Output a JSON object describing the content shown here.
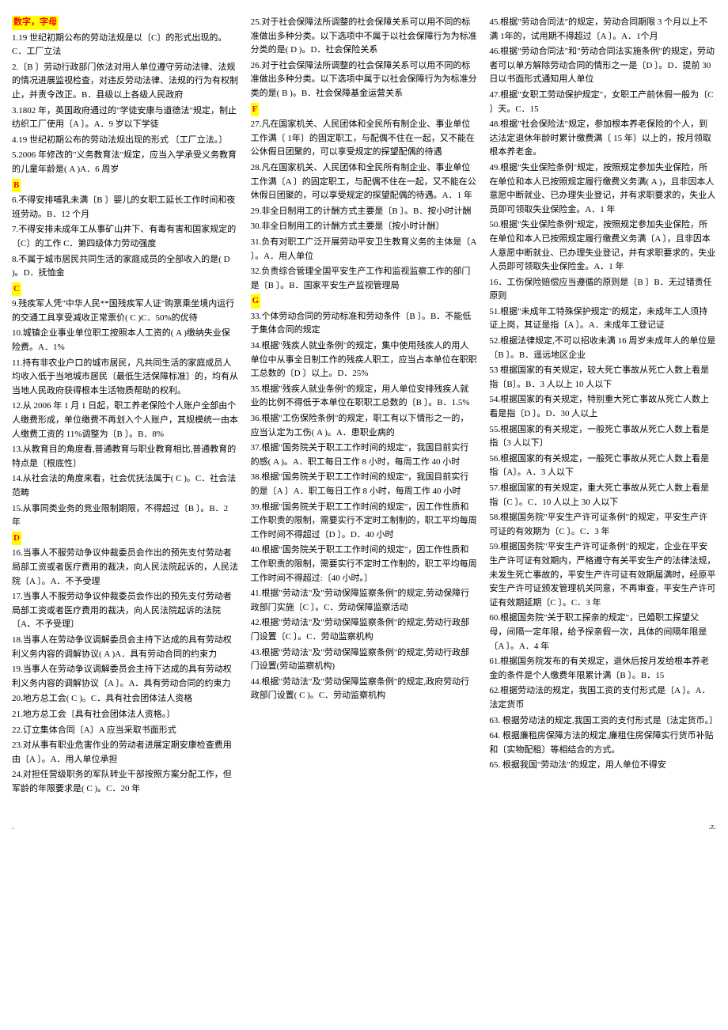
{
  "sections": {
    "header": "数字，字母",
    "B": "B",
    "C": "C",
    "D": "D",
    "F": "F",
    "G": "G"
  },
  "col1": [
    {
      "type": "header",
      "key": "header"
    },
    {
      "type": "item",
      "text": "1.19 世纪初期公布的劳动法规是以〔C〕的形式出现的。C．工厂立法"
    },
    {
      "type": "item",
      "text": "2.〔B  〕劳动行政部门依法对用人单位遵守劳动法律、法规的情况进展监视检查，对违反劳动法律、法规的行为有权制止，并责令改正。B．县级以上各级人民政府"
    },
    {
      "type": "item",
      "text": "3.1802 年，英国政府通过的\"学徒安康与道德法\"规定，制止纺织工厂使用〔A  〕。A．9 岁以下学徒"
    },
    {
      "type": "item",
      "text": "4.19 世纪初期公布的劳动法规出现的形式  〔工厂立法。〕"
    },
    {
      "type": "item",
      "text": "5.2006 年修改的\"义务教育法\"规定，应当入学承受义务教育的儿童年龄是( A  )A．6 周岁"
    },
    {
      "type": "header",
      "key": "B"
    },
    {
      "type": "item",
      "text": "6.不得安排哺乳未满〔B  〕婴儿的女职工延长工作时间和夜班劳动。B．12 个月"
    },
    {
      "type": "item",
      "text": "7.不得安排未成年工从事矿山井下、有毒有害和国家规定的〔C〕的工作 C．第四级体力劳动强度"
    },
    {
      "type": "item",
      "text": "8.不属于城市居民共同生活的家庭成员的全部收入的是(  D  )。D．抚恤金"
    },
    {
      "type": "header",
      "key": "C"
    },
    {
      "type": "item",
      "text": "9.残疾军人凭\"中华人民**国残疾军人证\"购票乘坐境内运行的交通工具享受减收正常票价(  C  )C．50%的优待"
    },
    {
      "type": "item",
      "text": "10.城镇企业事业单位职工按照本人工资的( A   )缴纳失业保险费。A．1%"
    },
    {
      "type": "item",
      "text": "11.持有非农业户口的城市居民，凡共同生活的家庭成员人均收入低于当地城市居民〔最低生活保障标准〕的，均有从当地人民政府获得根本生活物质帮助的权利。"
    },
    {
      "type": "item",
      "text": "12.从 2006 年 1 月 1 日起，职工养老保险个人账户全部由个人缴费形成，单位缴费不再划入个人账户，其规模统一由本人缴费工资的 11%调整为〔B  〕。B．8%"
    },
    {
      "type": "item",
      "text": "13.从教育目的角度看,普通教育与职业教育相比,普通教育的特点是〔根底性〕"
    },
    {
      "type": "item",
      "text": "14.从社会法的角度来看，社会优抚法属于(  C  )。C．社会法范畴"
    },
    {
      "type": "item",
      "text": "15.从事同类业务的竞业限制期限，不得超过〔B  〕。B．2 年"
    },
    {
      "type": "header",
      "key": "D"
    },
    {
      "type": "item",
      "text": "16.当事人不服劳动争议仲裁委员会作出的预先支付劳动者局部工资或者医疗费用的裁决，向人民法院起诉的，人民法院〔A  〕。A．不予受理"
    },
    {
      "type": "item",
      "text": "17.当事人不服劳动争议仲裁委员会作出的预先支付劳动者局部工资或者医疗费用的裁决，向人民法院起诉的法院〔A、不予受理〕"
    },
    {
      "type": "item",
      "text": "18.当事人在劳动争议调解委员会主持下达成的具有劳动权利义务内容的调解协议( A  )A．具有劳动合同的约束力"
    },
    {
      "type": "item",
      "text": "19.当事人在劳动争议调解委员会主持下达成的具有劳动权利义务内容的调解协议〔A  〕。A．具有劳动合同的约束力"
    },
    {
      "type": "item",
      "text": "20.地方总工会( C )。C．具有社会团体法人资格"
    },
    {
      "type": "item",
      "text": "21.地方总工会〔具有社会团体法人资格。〕"
    },
    {
      "type": "item",
      "text": "22.订立集体合同〔A〕A 应当采取书面形式"
    },
    {
      "type": "item",
      "text": "23.对从事有职业危害作业的劳动者进展定期安康检查费用由〔A  〕。A．用人单位承担"
    },
    {
      "type": "item",
      "text": "24.对担任营级职务的军队转业干部按照方案分配工作，但军龄的年限要求是( C    )。C．20 年"
    }
  ],
  "col2": [
    {
      "type": "item",
      "text": "25.对于社会保障法所调整的社会保障关系可以用不同的标准做出多种分类。以下选项中不属于以社会保障行为为标准分类的是(  D  )。D．社会保险关系"
    },
    {
      "type": "item",
      "text": "26.对于社会保障法所调整的社会保障关系可以用不同的标准做出多种分类。以下选项中属于以社会保障行为为标准分类的是(  B  )。B．社会保障基金运营关系"
    },
    {
      "type": "header",
      "key": "F"
    },
    {
      "type": "item",
      "text": "27.凡在国家机关、人民团体和全民所有制企业、事业单位工作满〔 1年〕的固定职工，与配偶不住在一起，又不能在公休假日团聚的，可以享受规定的探望配偶的待遇"
    },
    {
      "type": "item",
      "text": "28.凡在国家机关、人民团体和全民所有制企业、事业单位工作满〔A  〕的固定职工，与配偶不住在一起，又不能在公休假日团聚的，可以享受规定的探望配偶的待遇。A．1 年"
    },
    {
      "type": "item",
      "text": "29.非全日制用工的计酬方式主要是〔B  〕。B．按小时计酬"
    },
    {
      "type": "item",
      "text": "30.非全日制用工的计酬方式主要是〔按小时计酬〕"
    },
    {
      "type": "item",
      "text": "31.负有对职工广泛开展劳动平安卫生教育义务的主体是〔A  〕。A．用人单位"
    },
    {
      "type": "item",
      "text": "32.负责综合管理全国平安生产工作和监视监察工作的部门是〔B  〕。B．国家平安生产监视管理局"
    },
    {
      "type": "header",
      "key": "G"
    },
    {
      "type": "item",
      "text": "33.个体劳动合同的劳动标准和劳动条件〔B  〕。B．不能低于集体合同的规定"
    },
    {
      "type": "item",
      "text": "34.根据\"残疾人就业条例\"的规定，集中使用残疾人的用人单位中从事全日制工作的残疾人职工，应当占本单位在职职工总数的〔D  〕以上。D．25%"
    },
    {
      "type": "item",
      "text": "35.根据\"残疾人就业条例\"的规定，用人单位安排残疾人就业的比例不得低于本单位在职职工总数的〔B  〕。B．1.5%"
    },
    {
      "type": "item",
      "text": "36.根据\"工伤保险条例\"的规定，职工有以下情形之一的，应当认定为工伤(  A  )。A．患职业病的"
    },
    {
      "type": "item",
      "text": "37.根据\"国务院关于职工工作时间的规定\"，我国目前实行的感(  A  )。A．职工每日工作 8 小时，每周工作 40 小时"
    },
    {
      "type": "item",
      "text": "38.根据\"国务院关于职工工作时间的规定\"，我国目前实行的是〔A  〕A．职工每日工作 8 小时，每周工作 40 小时"
    },
    {
      "type": "item",
      "text": "39.根据\"国务院关于职工工作时间的规定\"，因工作性质和工作职责的限制，需要实行不定时工制制的，职工平均每周工作时间不得超过〔D  〕。D．40 小时"
    },
    {
      "type": "item",
      "text": "40.根据\"国务院关于职工工作时间的规定\"，因工作性质和工作职责的限制，需要实行不定时工作制的，职工平均每周工作时间不得超过:〔40 小时。〕"
    },
    {
      "type": "item",
      "text": "41.根据\"劳动法\"及\"劳动保障监察条例\"的规定,劳动保障行政部门实施〔C  〕。C．劳动保障监察活动"
    },
    {
      "type": "item",
      "text": "42.根据\"劳动法\"及\"劳动保障监察条例\"的规定,劳动行政部门设置〔C  〕。C．劳动监察机构"
    },
    {
      "type": "item",
      "text": "43.根据\"劳动法\"及\"劳动保障监察条例\"的规定,劳动行政部门设置(劳动监察机构)"
    },
    {
      "type": "item",
      "text": "44.根据\"劳动法\"及\"劳动保障监察条例\"的规定,政府劳动行政部门设置(  C  )。C．劳动监察机构"
    }
  ],
  "col3": [
    {
      "type": "item",
      "text": "45.根据\"劳动合同法\"的规定，劳动合同期限 3 个月以上不满 1年的，试用期不得超过〔A  〕。A．1个月"
    },
    {
      "type": "item",
      "text": "46.根据\"劳动合同法\"和\"劳动合同法实施条例\"的规定，劳动者可以单方解除劳动合同的情形之一是〔D  〕。D．提前 30 日以书面形式通知用人单位"
    },
    {
      "type": "item",
      "text": "47.根据\"女职工劳动保护规定\"，女职工产前休假一般为〔C  〕天。C．15"
    },
    {
      "type": "item",
      "text": "48.根据\"社会保险法\"规定，参加根本养老保险的个人，到达法定退休年龄时累计缴费满〔 15 年〕以上的，按月领取根本养老金。"
    },
    {
      "type": "item",
      "text": "49.根据\"失业保险条例\"规定，按照规定参加失业保险，所在单位和本人已按照规定履行缴费义务满(  A  )，且非因本人意愿中断就业、已办理失业登记，并有求职要求的，失业人员即可领取失业保险金。A．1 年"
    },
    {
      "type": "item",
      "text": "50.根据\"失业保险条例\"规定，按照规定参加失业保险，所在单位和本人已按照规定履行缴费义务满〔A  〕，且非因本人意愿中断就业、已办理失业登记，并有求职要求的，失业人员即可领取失业保险金。A．1 年"
    },
    {
      "type": "item",
      "text": "16．工伤保险赔偿应当遵循的原则是〔B  〕B．无过错责任原则"
    },
    {
      "type": "item",
      "text": "51.根据\"未成年工特殊保护规定\"的规定，未成年工人须持证上岗，其证是指〔A  〕。A．未成年工登记证"
    },
    {
      "type": "item",
      "text": "52.根据法律规定,不可以招收未满 16 周岁未成年人的单位是〔B  〕。B．遥远地区企业"
    },
    {
      "type": "item",
      "text": "53 根据国家的有关规定，较大死亡事故从死亡人数上看是指〔B〕。B．3 人以上 10 人以下"
    },
    {
      "type": "item",
      "text": "54.根据国家的有关规定，特别重大死亡事故从死亡人数上看是指〔D  〕。D．30 人以上"
    },
    {
      "type": "item",
      "text": "55.根据国家的有关规定，一般死亡事故从死亡人数上看是指〔3 人以下〕"
    },
    {
      "type": "item",
      "text": "56.根据国家的有关规定，一般死亡事故从死亡人数上看是指〔A〕。A．3 人以下"
    },
    {
      "type": "item",
      "text": "57.根据国家的有关规定，重大死亡事故从死亡人数上看是指〔C  〕。C．10 人以上 30 人以下"
    },
    {
      "type": "item",
      "text": "58.根据国务院\"平安生产许可证条例\"的规定，平安生产许可证的有效期为〔C  〕。C．3 年"
    },
    {
      "type": "item",
      "text": "59.根据国务院\"平安生产许可证条例\"的规定，企业在平安生产许可证有效期内，严格遵守有关平安生产的法律法规，未发生死亡事故的，平安生产许可证有效期届满时，经原平安生产许可证颁发管理机关同意，不再审查，平安生产许可证有效期延期〔C  〕。C．3 年"
    },
    {
      "type": "item",
      "text": "60.根据国务院\"关于职工探亲的规定\"，已婚职工探望父母，间隔一定年限，给予探亲假一次，具体的间隔年限是〔A  〕。A．4 年"
    },
    {
      "type": "item",
      "text": "61.根据国务院发布的有关规定，退休后按月发给根本养老金的条件是个人缴费年限累计满〔B  〕。B．15"
    },
    {
      "type": "item",
      "text": "62.根据劳动法的规定，我国工资的支付形式是〔A  〕。A．法定货币"
    },
    {
      "type": "item",
      "text": "63.  根据劳动法的规定,我国工资的支付形式是〔法定货币。〕"
    },
    {
      "type": "item",
      "text": "64.  根据廉租房保障方法的规定,廉租住房保障实行货币补贴和〔实物配租〕等相结合的方式。"
    },
    {
      "type": "item",
      "text": "65.    根据我国\"劳动法\"的规定，用人单位不得安"
    }
  ],
  "footer": {
    "left": ".",
    "right": ".z."
  }
}
